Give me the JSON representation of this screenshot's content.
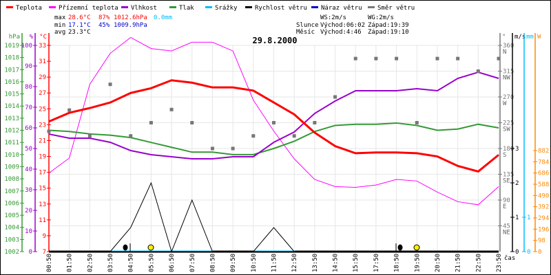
{
  "legend": [
    {
      "label": "Teplota",
      "color": "#ff0000"
    },
    {
      "label": "Přízemní teplota",
      "color": "#ff00ff"
    },
    {
      "label": "Vlhkost",
      "color": "#9900cc"
    },
    {
      "label": "Tlak",
      "color": "#339933"
    },
    {
      "label": "Srážky",
      "color": "#00bbff"
    },
    {
      "label": "Rychlost větru",
      "color": "#000000"
    },
    {
      "label": "Náraz větru",
      "color": "#0000cc"
    },
    {
      "label": "Směr větru",
      "color": "#777777"
    }
  ],
  "stats": {
    "max_label": "max",
    "max_temp": "28.6°C",
    "max_hum": "87%",
    "max_press": "1012.6hPa",
    "max_rain": "0.0mm",
    "min_label": "min",
    "min_temp": "17.1°C",
    "min_hum": "45%",
    "min_press": "1009.9hPa",
    "avg_label": "avg",
    "avg_temp": "23.3°C",
    "ws": "WS:2m/s",
    "wg": "WG:2m/s",
    "sun_label": "Slunce",
    "sunrise": "Východ:06:02",
    "sunset": "Západ:19:39",
    "moon_label": "Měsíc",
    "moonrise": "Východ:4:46",
    "moonset": "Západ:19:10"
  },
  "chart_data": {
    "type": "line",
    "title": "29.8.2000",
    "x": [
      "00:50",
      "01:50",
      "02:50",
      "03:50",
      "04:50",
      "05:50",
      "06:50",
      "07:50",
      "08:50",
      "09:50",
      "10:50",
      "11:50",
      "12:50",
      "13:50",
      "14:50",
      "15:50",
      "17:50",
      "18:50",
      "19:50",
      "20:50",
      "21:50",
      "22:50",
      "23:50"
    ],
    "xlabel": "čas",
    "axes": {
      "hpa": {
        "unit": "hPa",
        "range": [
          1002,
          1019
        ],
        "ticks": [
          1002,
          1003,
          1004,
          1005,
          1006,
          1007,
          1008,
          1009,
          1010,
          1011,
          1012,
          1013,
          1014,
          1015,
          1016,
          1017,
          1018,
          1019
        ]
      },
      "pct": {
        "unit": "%",
        "range": [
          0,
          100
        ],
        "ticks": [
          0,
          10,
          20,
          30,
          40,
          50,
          60,
          70,
          80,
          90,
          100
        ]
      },
      "temp": {
        "unit": "°C",
        "range": [
          7,
          33
        ],
        "ticks": [
          7,
          9,
          11,
          13,
          15,
          17,
          19,
          21,
          23,
          25,
          27,
          29,
          31,
          33
        ]
      },
      "dir": {
        "unit": "°",
        "range": [
          0,
          360
        ],
        "ticks": [
          {
            "v": 45,
            "l": "NE"
          },
          {
            "v": 90,
            "l": "E"
          },
          {
            "v": 135,
            "l": "SE"
          },
          {
            "v": 180,
            "l": "S"
          },
          {
            "v": 225,
            "l": "SW"
          },
          {
            "v": 270,
            "l": "W"
          },
          {
            "v": 315,
            "l": "NW"
          },
          {
            "v": 360,
            "l": "N"
          }
        ]
      },
      "ms": {
        "unit": "m/s",
        "range": [
          0,
          6
        ],
        "ticks": [
          0,
          1,
          2,
          3
        ]
      },
      "mm": {
        "unit": "mm",
        "range": [
          0,
          6
        ],
        "ticks": [
          0,
          1
        ]
      },
      "w": {
        "unit": "W",
        "range": [
          0,
          1800
        ],
        "ticks": [
          0,
          98,
          196,
          294,
          392,
          490,
          588,
          686,
          784,
          882
        ]
      }
    },
    "series": [
      {
        "name": "Přízemní teplota",
        "axis": "temp",
        "color": "#ff00ff",
        "width": 1,
        "values": [
          16.9,
          18.8,
          28.1,
          32.0,
          34.0,
          32.6,
          32.3,
          33.4,
          33.4,
          32.3,
          26.1,
          22.2,
          18.7,
          16.1,
          15.2,
          15.1,
          15.4,
          16.1,
          15.9,
          14.5,
          13.3,
          12.9,
          15.2
        ]
      },
      {
        "name": "Tlak",
        "axis": "hpa",
        "color": "#339933",
        "width": 2,
        "values": [
          1012.0,
          1011.9,
          1011.7,
          1011.6,
          1011.4,
          1011.0,
          1010.6,
          1010.2,
          1010.2,
          1010.0,
          1010.0,
          1010.5,
          1011.1,
          1011.9,
          1012.4,
          1012.5,
          1012.5,
          1012.6,
          1012.4,
          1012.0,
          1012.1,
          1012.5,
          1012.2
        ]
      },
      {
        "name": "Vlhkost",
        "axis": "pct",
        "color": "#9900cc",
        "width": 2,
        "values": [
          57,
          55,
          55,
          53,
          49,
          47,
          46,
          45,
          45,
          46,
          46,
          53,
          58,
          67,
          73,
          78,
          78,
          78,
          79,
          78,
          84,
          87,
          84
        ]
      },
      {
        "name": "Teplota",
        "axis": "temp",
        "color": "#ff0000",
        "width": 3,
        "values": [
          23.4,
          24.5,
          25.1,
          25.8,
          27.0,
          27.6,
          28.6,
          28.3,
          27.7,
          27.7,
          27.3,
          25.8,
          24.3,
          22.0,
          20.3,
          19.4,
          19.5,
          19.5,
          19.4,
          19.0,
          17.8,
          17.1,
          19.2
        ]
      },
      {
        "name": "Rychlost větru",
        "axis": "ms",
        "color": "#000000",
        "width": 1,
        "values": [
          0,
          0,
          0,
          0,
          0.7,
          2.0,
          0,
          1.5,
          0,
          0,
          0,
          0.7,
          0,
          0,
          0,
          0,
          0,
          0,
          0,
          0,
          0,
          0,
          0
        ]
      },
      {
        "name": "Směr větru",
        "axis": "dir",
        "color": "#777777",
        "type": "scatter",
        "values": [
          210,
          247,
          202,
          292,
          202,
          225,
          248,
          225,
          180,
          180,
          202,
          225,
          202,
          225,
          270,
          337,
          337,
          337,
          225,
          337,
          337,
          315,
          337
        ]
      }
    ],
    "events": [
      {
        "name": "moonrise",
        "time": "04:46"
      },
      {
        "name": "sunrise",
        "time": "06:02"
      },
      {
        "name": "moonset",
        "time": "19:10"
      },
      {
        "name": "sunset",
        "time": "19:39"
      }
    ]
  }
}
